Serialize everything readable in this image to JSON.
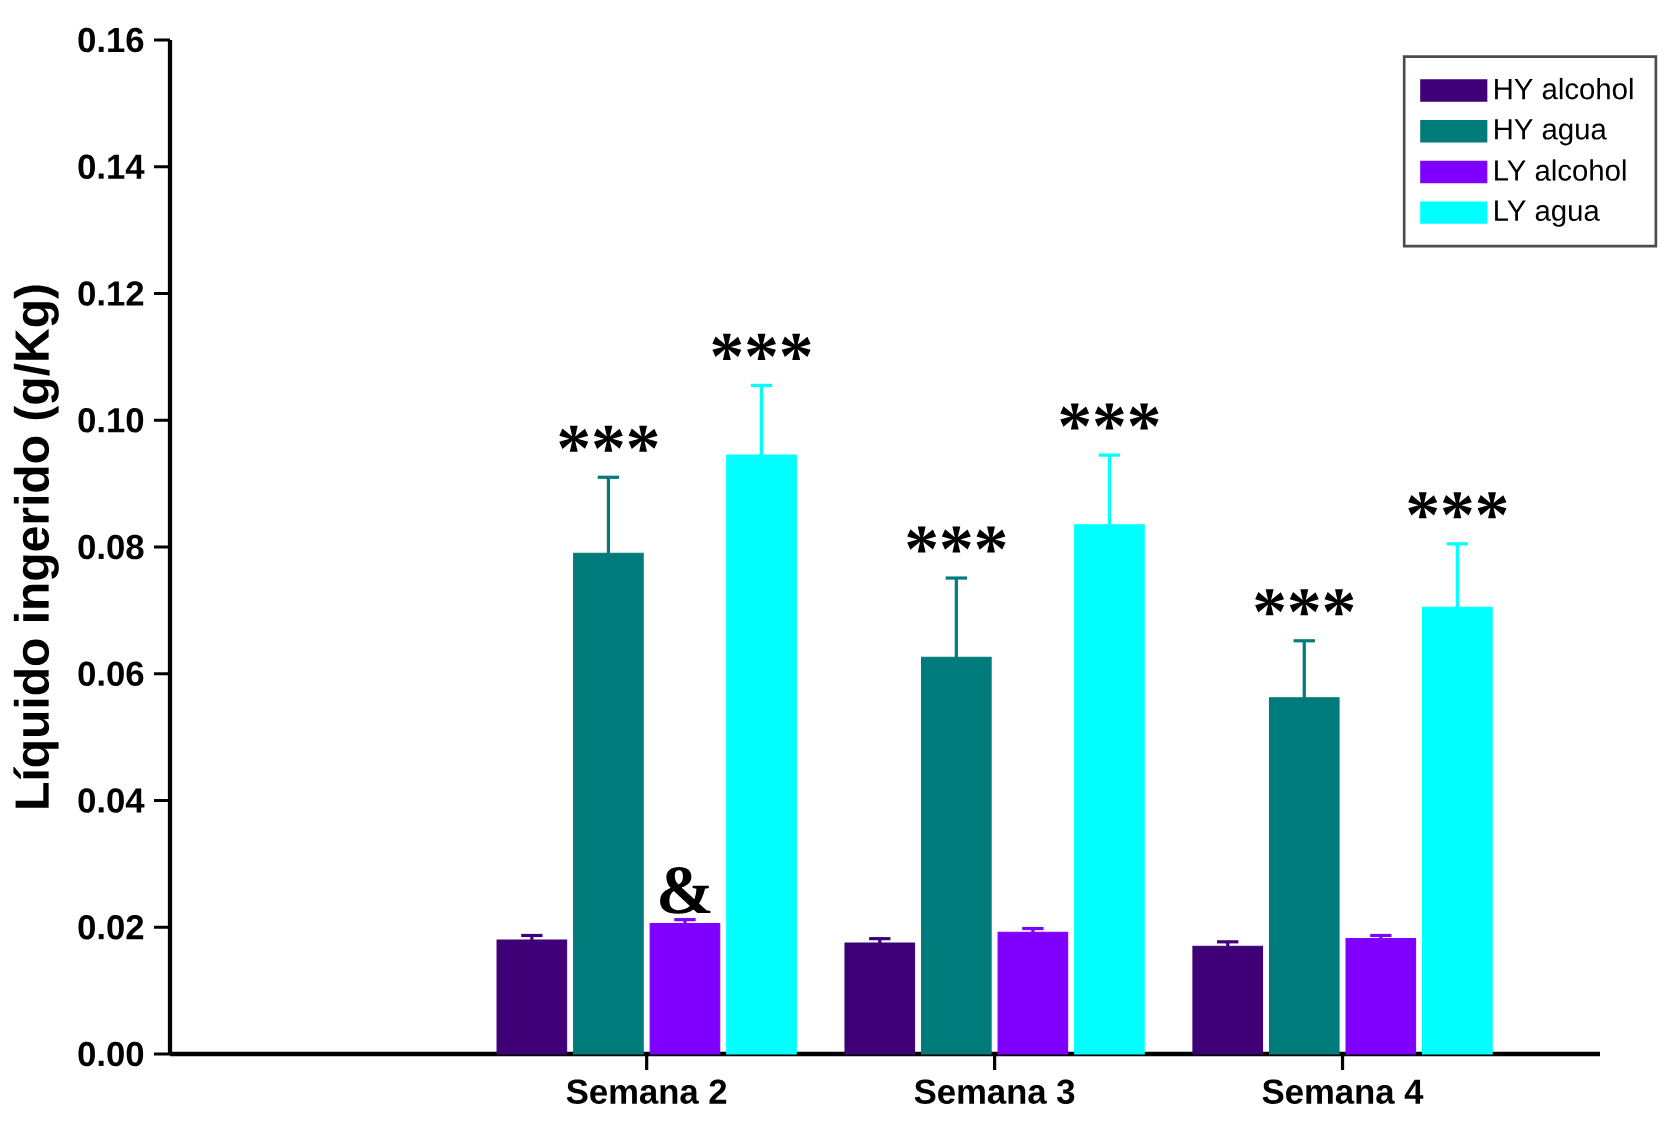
{
  "chart_data": {
    "type": "bar",
    "ylabel": "Líquido ingerido (g/Kg)",
    "categories": [
      "Semana 2",
      "Semana 3",
      "Semana 4"
    ],
    "series": [
      {
        "name": "HY alcohol",
        "color": "#3f0077",
        "values": [
          0.018,
          0.0175,
          0.017
        ],
        "errors": [
          0.0007,
          0.0007,
          0.0007
        ]
      },
      {
        "name": "HY agua",
        "color": "#007b7b",
        "values": [
          0.079,
          0.0626,
          0.0562
        ],
        "errors": [
          0.012,
          0.0125,
          0.009
        ],
        "value_labels": [
          "***",
          "***",
          "***"
        ]
      },
      {
        "name": "LY alcohol",
        "color": "#7f00ff",
        "values": [
          0.0206,
          0.0192,
          0.0182
        ],
        "errors": [
          0.0006,
          0.0006,
          0.0005
        ],
        "value_labels": [
          "&",
          null,
          null
        ]
      },
      {
        "name": "LY agua",
        "color": "#00ffff",
        "values": [
          0.0945,
          0.0835,
          0.0705
        ],
        "errors": [
          0.011,
          0.011,
          0.01
        ],
        "value_labels": [
          "***",
          "***",
          "***"
        ]
      }
    ],
    "ylim": [
      0,
      0.16
    ],
    "yticks": [
      {
        "value": 0,
        "label": "0.00"
      },
      {
        "value": 0.02,
        "label": "0.02"
      },
      {
        "value": 0.04,
        "label": "0.04"
      },
      {
        "value": 0.06,
        "label": "0.06"
      },
      {
        "value": 0.08,
        "label": "0.08"
      },
      {
        "value": 0.1,
        "label": "0.10"
      },
      {
        "value": 0.12,
        "label": "0.12"
      },
      {
        "value": 0.14,
        "label": "0.14"
      },
      {
        "value": 0.16,
        "label": "0.16"
      }
    ],
    "legend": "top right"
  }
}
